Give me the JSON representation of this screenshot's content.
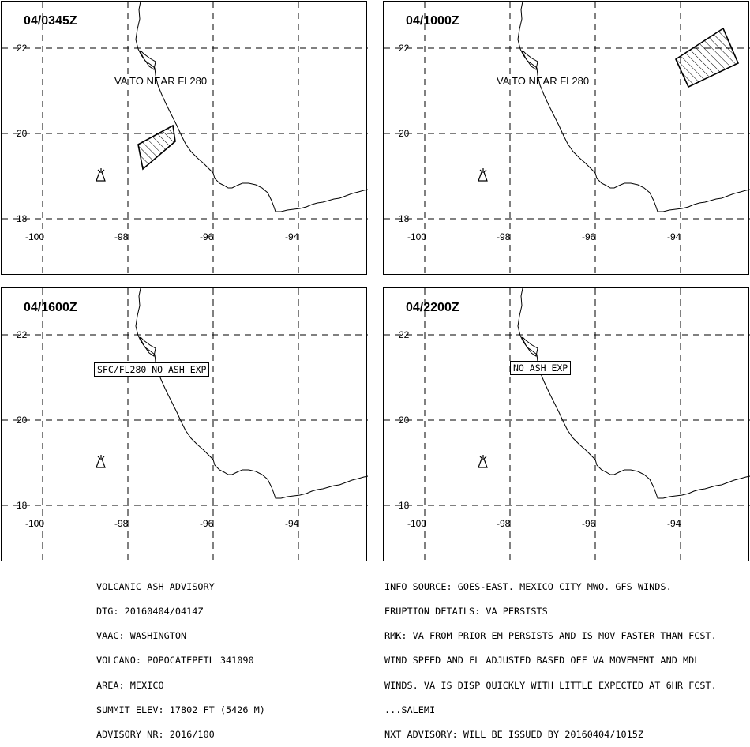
{
  "panels": [
    {
      "time": "04/0345Z",
      "label": "VA TO NEAR FL280",
      "boxed": false
    },
    {
      "time": "04/1000Z",
      "label": "VA TO NEAR FL280",
      "boxed": false
    },
    {
      "time": "04/1600Z",
      "label": "SFC/FL280 NO ASH EXP",
      "boxed": true
    },
    {
      "time": "04/2200Z",
      "label": "NO ASH EXP",
      "boxed": true
    }
  ],
  "axes": {
    "lat_ticks": [
      "22",
      "20",
      "18"
    ],
    "lon_ticks": [
      "-100",
      "-98",
      "-96",
      "-94"
    ]
  },
  "advisory_left": [
    "VOLCANIC ASH ADVISORY",
    "DTG: 20160404/0414Z",
    "VAAC: WASHINGTON",
    "VOLCANO: POPOCATEPETL 341090",
    "AREA: MEXICO",
    "SUMMIT ELEV: 17802 FT (5426 M)",
    "ADVISORY NR: 2016/100"
  ],
  "advisory_right": [
    "INFO SOURCE: GOES-EAST. MEXICO CITY MWO. GFS WINDS.",
    "ERUPTION DETAILS: VA PERSISTS",
    "RMK: VA FROM PRIOR EM PERSISTS AND IS MOV FASTER THAN FCST.",
    "WIND SPEED AND FL ADJUSTED BASED OFF VA MOVEMENT AND MDL",
    "WINDS. VA IS DISP QUICKLY WITH LITTLE EXPECTED AT 6HR FCST.",
    "...SALEMI",
    "NXT ADVISORY: WILL BE ISSUED BY 20160404/1015Z"
  ]
}
